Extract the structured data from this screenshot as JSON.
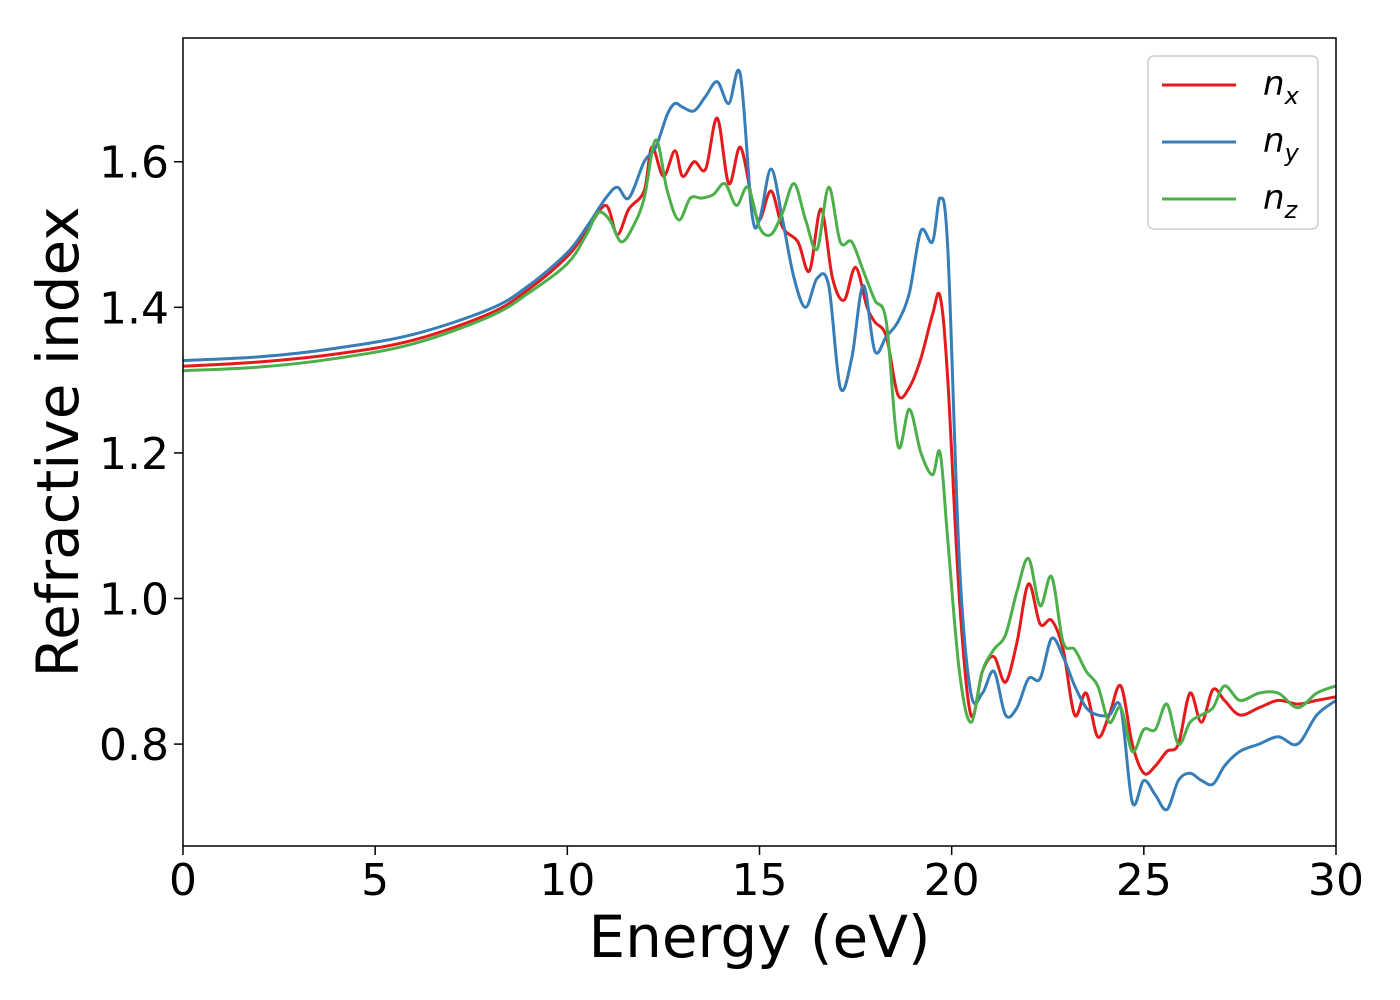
{
  "chart_data": {
    "type": "line",
    "title": "",
    "xlabel": "Energy (eV)",
    "ylabel": "Refractive index",
    "xlim": [
      0,
      30
    ],
    "ylim": [
      0.66,
      1.77
    ],
    "xticks": [
      0,
      5,
      10,
      15,
      20,
      25,
      30
    ],
    "xtick_labels": [
      "0",
      "5",
      "10",
      "15",
      "20",
      "25",
      "30"
    ],
    "yticks": [
      0.8,
      1.0,
      1.2,
      1.4,
      1.6
    ],
    "ytick_labels": [
      "0.8",
      "1.0",
      "1.2",
      "1.4",
      "1.6"
    ],
    "grid": false,
    "legend_position": "top-right",
    "series": [
      {
        "name": "n",
        "subscript": "x",
        "color": "#e41a1c",
        "x": [
          0,
          2,
          4,
          6,
          8,
          9,
          10,
          10.5,
          11,
          11.3,
          11.6,
          12,
          12.2,
          12.5,
          12.8,
          13,
          13.3,
          13.6,
          13.9,
          14.2,
          14.5,
          14.8,
          15,
          15.3,
          15.6,
          16,
          16.3,
          16.6,
          16.9,
          17.2,
          17.5,
          17.8,
          18,
          18.3,
          18.6,
          18.9,
          19.2,
          19.5,
          19.7,
          19.9,
          20.2,
          20.5,
          20.8,
          21.1,
          21.4,
          21.7,
          22,
          22.3,
          22.6,
          22.9,
          23.2,
          23.5,
          23.8,
          24.1,
          24.4,
          24.7,
          25,
          25.3,
          25.6,
          25.9,
          26.2,
          26.5,
          26.8,
          27.1,
          27.5,
          28,
          28.5,
          29,
          29.5,
          30
        ],
        "y": [
          1.319,
          1.325,
          1.336,
          1.355,
          1.392,
          1.425,
          1.47,
          1.505,
          1.54,
          1.5,
          1.535,
          1.56,
          1.62,
          1.58,
          1.615,
          1.58,
          1.6,
          1.59,
          1.66,
          1.57,
          1.62,
          1.55,
          1.52,
          1.56,
          1.51,
          1.49,
          1.45,
          1.535,
          1.44,
          1.41,
          1.455,
          1.4,
          1.38,
          1.36,
          1.28,
          1.29,
          1.33,
          1.39,
          1.415,
          1.3,
          1.0,
          0.84,
          0.9,
          0.92,
          0.885,
          0.94,
          1.02,
          0.965,
          0.97,
          0.93,
          0.84,
          0.87,
          0.81,
          0.84,
          0.88,
          0.8,
          0.76,
          0.77,
          0.79,
          0.8,
          0.87,
          0.83,
          0.875,
          0.86,
          0.84,
          0.85,
          0.86,
          0.855,
          0.86,
          0.865
        ]
      },
      {
        "name": "n",
        "subscript": "y",
        "color": "#377eb8",
        "x": [
          0,
          2,
          4,
          6,
          8,
          9,
          10,
          10.5,
          11,
          11.3,
          11.6,
          12,
          12.3,
          12.6,
          12.8,
          13,
          13.3,
          13.6,
          13.9,
          14.2,
          14.5,
          14.8,
          15,
          15.3,
          15.6,
          15.9,
          16.2,
          16.5,
          16.8,
          17.1,
          17.4,
          17.7,
          18,
          18.3,
          18.6,
          18.9,
          19.2,
          19.5,
          19.7,
          19.9,
          20.2,
          20.5,
          20.8,
          21.1,
          21.4,
          21.7,
          22,
          22.3,
          22.6,
          22.9,
          23.2,
          23.5,
          23.8,
          24.1,
          24.4,
          24.7,
          25,
          25.3,
          25.6,
          25.9,
          26.2,
          26.5,
          26.8,
          27.1,
          27.5,
          28,
          28.5,
          29,
          29.5,
          30
        ],
        "y": [
          1.327,
          1.332,
          1.344,
          1.363,
          1.398,
          1.43,
          1.475,
          1.51,
          1.55,
          1.565,
          1.55,
          1.6,
          1.62,
          1.665,
          1.68,
          1.675,
          1.67,
          1.69,
          1.71,
          1.68,
          1.72,
          1.53,
          1.52,
          1.59,
          1.52,
          1.44,
          1.4,
          1.44,
          1.43,
          1.29,
          1.33,
          1.43,
          1.34,
          1.36,
          1.38,
          1.42,
          1.505,
          1.49,
          1.55,
          1.48,
          1.05,
          0.87,
          0.87,
          0.9,
          0.84,
          0.85,
          0.89,
          0.89,
          0.945,
          0.92,
          0.88,
          0.85,
          0.84,
          0.84,
          0.85,
          0.72,
          0.75,
          0.73,
          0.71,
          0.75,
          0.76,
          0.75,
          0.745,
          0.77,
          0.79,
          0.8,
          0.81,
          0.8,
          0.84,
          0.86
        ]
      },
      {
        "name": "n",
        "subscript": "z",
        "color": "#4daf4a",
        "x": [
          0,
          2,
          4,
          6,
          8,
          9,
          10,
          10.5,
          10.8,
          11.1,
          11.4,
          11.7,
          12,
          12.3,
          12.6,
          12.9,
          13.2,
          13.5,
          13.8,
          14.1,
          14.4,
          14.7,
          15,
          15.3,
          15.6,
          15.9,
          16.2,
          16.5,
          16.8,
          17.1,
          17.4,
          17.7,
          18,
          18.3,
          18.6,
          18.9,
          19.2,
          19.5,
          19.7,
          19.9,
          20.2,
          20.5,
          20.8,
          21.1,
          21.4,
          21.7,
          22,
          22.3,
          22.6,
          22.9,
          23.2,
          23.5,
          23.8,
          24.1,
          24.4,
          24.7,
          25,
          25.3,
          25.6,
          25.9,
          26.2,
          26.5,
          26.8,
          27.1,
          27.5,
          28,
          28.5,
          29,
          29.5,
          30
        ],
        "y": [
          1.313,
          1.318,
          1.33,
          1.35,
          1.388,
          1.42,
          1.46,
          1.5,
          1.53,
          1.52,
          1.49,
          1.51,
          1.55,
          1.63,
          1.56,
          1.52,
          1.55,
          1.55,
          1.555,
          1.57,
          1.54,
          1.565,
          1.51,
          1.5,
          1.53,
          1.57,
          1.52,
          1.48,
          1.565,
          1.49,
          1.49,
          1.45,
          1.41,
          1.38,
          1.21,
          1.26,
          1.2,
          1.17,
          1.2,
          1.08,
          0.9,
          0.83,
          0.9,
          0.93,
          0.95,
          1.01,
          1.055,
          0.99,
          1.03,
          0.94,
          0.93,
          0.9,
          0.88,
          0.83,
          0.85,
          0.79,
          0.82,
          0.82,
          0.855,
          0.8,
          0.83,
          0.84,
          0.85,
          0.88,
          0.86,
          0.87,
          0.87,
          0.85,
          0.87,
          0.88
        ]
      }
    ]
  }
}
